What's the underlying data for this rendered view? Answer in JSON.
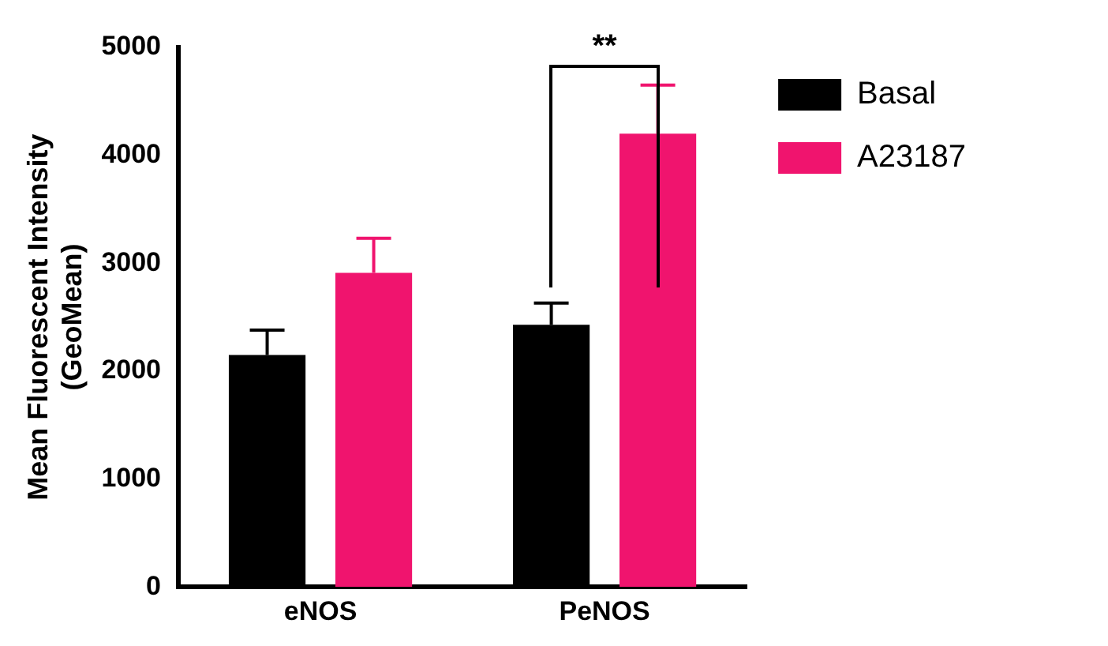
{
  "chart_data": {
    "type": "bar",
    "ylabel": "Mean Fluorescent Intensity\n(GeoMean)",
    "categories": [
      "eNOS",
      "PeNOS"
    ],
    "series": [
      {
        "name": "Basal",
        "color": "#000000",
        "values": [
          2150,
          2430
        ],
        "errors": [
          [
            2150,
            2380
          ],
          [
            2430,
            2630
          ]
        ]
      },
      {
        "name": "A23187",
        "color": "#f0146e",
        "values": [
          2910,
          4200
        ],
        "errors": [
          [
            2910,
            3230
          ],
          [
            4200,
            4650
          ]
        ]
      }
    ],
    "ylim": [
      0,
      5000
    ],
    "yticks": [
      0,
      1000,
      2000,
      3000,
      4000,
      5000
    ],
    "grid": false,
    "legend": "top right",
    "annotations": [
      "**"
    ]
  }
}
